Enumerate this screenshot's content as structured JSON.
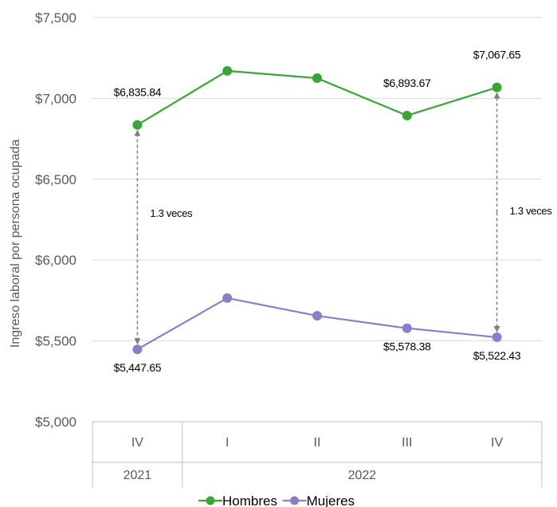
{
  "chart_data": {
    "type": "line",
    "title": "",
    "ylabel": "Ingreso laboral por persona ocupada",
    "ylim": [
      5000,
      7500
    ],
    "yticks": [
      5000,
      5500,
      6000,
      6500,
      7000,
      7500
    ],
    "ytick_labels": [
      "$5,000",
      "$5,500",
      "$6,000",
      "$6,500",
      "$7,000",
      "$7,500"
    ],
    "categories": [
      "IV",
      "I",
      "II",
      "III",
      "IV"
    ],
    "year_groups": [
      {
        "label": "2021",
        "count": 1
      },
      {
        "label": "2022",
        "count": 4
      }
    ],
    "grid": true,
    "legend_position": "bottom",
    "series": [
      {
        "name": "Hombres",
        "color": "#3aa535",
        "values": [
          6835.84,
          7170,
          7125,
          6893.67,
          7067.65
        ],
        "labels": [
          "$6,835.84",
          "",
          "",
          "$6,893.67",
          "$7,067.65"
        ]
      },
      {
        "name": "Mujeres",
        "color": "#8a7ec8",
        "values": [
          5447.65,
          5765,
          5655,
          5578.38,
          5522.43
        ],
        "labels": [
          "$5,447.65",
          "",
          "",
          "$5,578.38",
          "$5,522.43"
        ]
      }
    ],
    "annotations": [
      {
        "category_index": 0,
        "text": "1.3 veces"
      },
      {
        "category_index": 4,
        "text": "1.3 veces"
      }
    ]
  }
}
